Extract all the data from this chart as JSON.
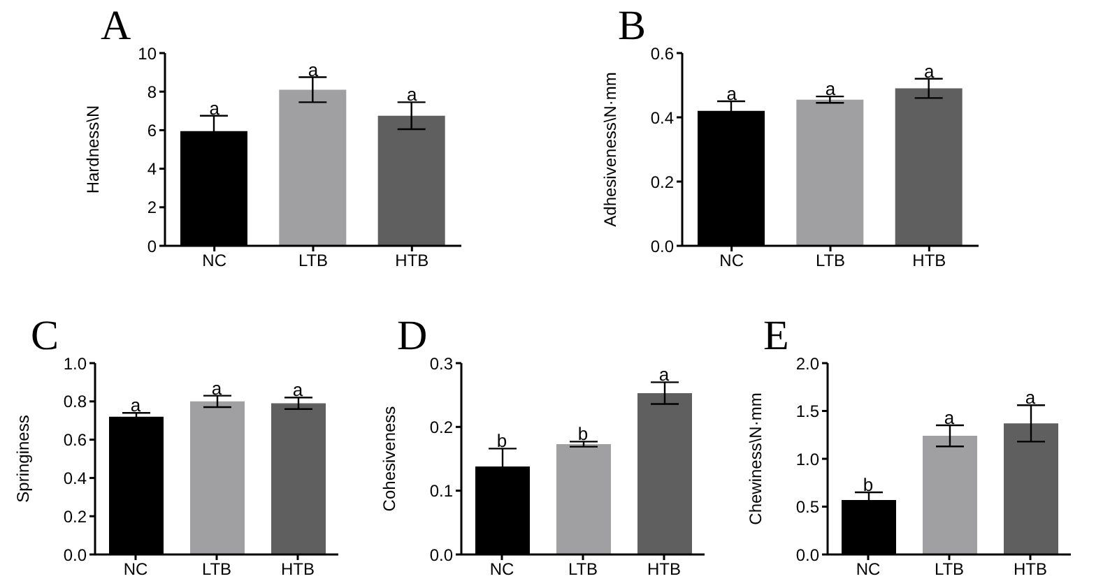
{
  "chart_data": [
    {
      "type": "bar",
      "title": "A",
      "ylabel": "Hardness\\N",
      "categories": [
        "NC",
        "LTB",
        "HTB"
      ],
      "values": [
        5.95,
        8.1,
        6.75
      ],
      "errors": [
        0.8,
        0.65,
        0.7
      ],
      "colors": [
        "#000000",
        "#a0a0a2",
        "#5f5f5f"
      ],
      "ylim": [
        0,
        10
      ],
      "yticks": [
        0,
        2,
        4,
        6,
        8,
        10
      ],
      "grid": false,
      "legend": false,
      "annotations": [
        {
          "text": "a",
          "x": "NC",
          "y": 6.75
        },
        {
          "text": "a",
          "x": "LTB",
          "y": 8.75
        },
        {
          "text": "a",
          "x": "HTB",
          "y": 7.45
        }
      ]
    },
    {
      "type": "bar",
      "title": "B",
      "ylabel": "Adhesiveness\\N·mm",
      "categories": [
        "NC",
        "LTB",
        "HTB"
      ],
      "values": [
        0.42,
        0.455,
        0.49
      ],
      "errors": [
        0.03,
        0.01,
        0.03
      ],
      "colors": [
        "#000000",
        "#a0a0a2",
        "#5f5f5f"
      ],
      "ylim": [
        0,
        0.6
      ],
      "yticks": [
        {
          "value": 0,
          "label": "0.0"
        },
        0.2,
        0.4,
        0.6
      ],
      "grid": false,
      "legend": false,
      "annotations": [
        {
          "text": "a",
          "x": "NC",
          "y": 0.45
        },
        {
          "text": "a",
          "x": "LTB",
          "y": 0.465
        },
        {
          "text": "a",
          "x": "HTB",
          "y": 0.52
        }
      ]
    },
    {
      "type": "bar",
      "title": "C",
      "ylabel": "Springiness",
      "categories": [
        "NC",
        "LTB",
        "HTB"
      ],
      "values": [
        0.72,
        0.8,
        0.79
      ],
      "errors": [
        0.02,
        0.03,
        0.03
      ],
      "colors": [
        "#000000",
        "#a0a0a2",
        "#5f5f5f"
      ],
      "ylim": [
        0,
        1
      ],
      "yticks": [
        {
          "value": 0,
          "label": "0.0"
        },
        0.2,
        0.4,
        0.6,
        0.8,
        {
          "value": 1,
          "label": "1.0"
        }
      ],
      "grid": false,
      "legend": false,
      "annotations": [
        {
          "text": "a",
          "x": "NC",
          "y": 0.74
        },
        {
          "text": "a",
          "x": "LTB",
          "y": 0.83
        },
        {
          "text": "a",
          "x": "HTB",
          "y": 0.82
        }
      ]
    },
    {
      "type": "bar",
      "title": "D",
      "ylabel": "Cohesiveness",
      "categories": [
        "NC",
        "LTB",
        "HTB"
      ],
      "values": [
        0.138,
        0.173,
        0.253
      ],
      "errors": [
        0.028,
        0.004,
        0.017
      ],
      "colors": [
        "#000000",
        "#a0a0a2",
        "#5f5f5f"
      ],
      "ylim": [
        0,
        0.3
      ],
      "yticks": [
        {
          "value": 0,
          "label": "0.0"
        },
        0.1,
        0.2,
        0.3
      ],
      "grid": false,
      "legend": false,
      "annotations": [
        {
          "text": "b",
          "x": "NC",
          "y": 0.166
        },
        {
          "text": "b",
          "x": "LTB",
          "y": 0.177
        },
        {
          "text": "a",
          "x": "HTB",
          "y": 0.27
        }
      ]
    },
    {
      "type": "bar",
      "title": "E",
      "ylabel": "Chewiness\\N·mm",
      "categories": [
        "NC",
        "LTB",
        "HTB"
      ],
      "values": [
        0.57,
        1.24,
        1.37
      ],
      "errors": [
        0.08,
        0.11,
        0.19
      ],
      "colors": [
        "#000000",
        "#a0a0a2",
        "#5f5f5f"
      ],
      "ylim": [
        0,
        2
      ],
      "yticks": [
        {
          "value": 0,
          "label": "0.0"
        },
        0.5,
        {
          "value": 1,
          "label": "1.0"
        },
        1.5,
        {
          "value": 2,
          "label": "2.0"
        }
      ],
      "grid": false,
      "legend": false,
      "annotations": [
        {
          "text": "b",
          "x": "NC",
          "y": 0.65
        },
        {
          "text": "a",
          "x": "LTB",
          "y": 1.35
        },
        {
          "text": "a",
          "x": "HTB",
          "y": 1.56
        }
      ]
    }
  ]
}
